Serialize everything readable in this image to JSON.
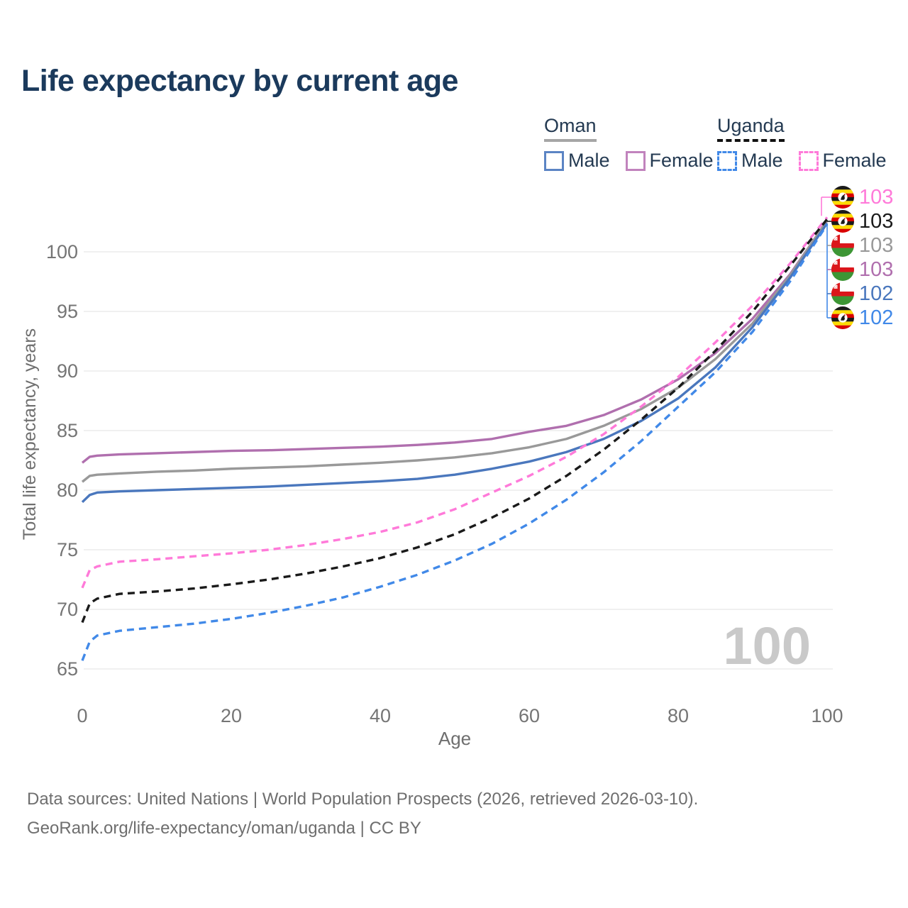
{
  "title": "Life expectancy by current age",
  "watermark": "100",
  "legend": {
    "groups": [
      {
        "country": "Oman",
        "items": [
          {
            "label": "Male"
          },
          {
            "label": "Female"
          }
        ]
      },
      {
        "country": "Uganda",
        "items": [
          {
            "label": "Male"
          },
          {
            "label": "Female"
          }
        ]
      }
    ]
  },
  "footer": {
    "line1": "Data sources: United Nations | World Population Prospects (2026, retrieved 2026-03-10).",
    "line2": "GeoRank.org/life-expectancy/oman/uganda | CC BY"
  },
  "chart_data": {
    "type": "line",
    "title": "Life expectancy by current age",
    "xlabel": "Age",
    "ylabel": "Total life expectancy, years",
    "xlim": [
      0,
      100
    ],
    "ylim": [
      65,
      104
    ],
    "x_ticks": [
      0,
      20,
      40,
      60,
      80,
      100
    ],
    "y_ticks": [
      65,
      70,
      75,
      80,
      85,
      90,
      95,
      100
    ],
    "grid": "horizontal",
    "legend_position": "top-right",
    "x": [
      0,
      1,
      2,
      5,
      10,
      15,
      20,
      25,
      30,
      35,
      40,
      45,
      50,
      55,
      60,
      65,
      70,
      75,
      80,
      85,
      90,
      95,
      100
    ],
    "series": [
      {
        "name": "Oman Female",
        "country": "Oman",
        "sex": "Female",
        "color": "#b06fae",
        "style": "solid",
        "values": [
          82.3,
          82.8,
          82.9,
          83.0,
          83.1,
          83.2,
          83.3,
          83.35,
          83.45,
          83.55,
          83.65,
          83.8,
          84.0,
          84.3,
          84.9,
          85.4,
          86.3,
          87.6,
          89.3,
          91.5,
          94.4,
          98.1,
          102.6
        ]
      },
      {
        "name": "Oman",
        "country": "Oman",
        "sex": "Overall",
        "color": "#999999",
        "style": "solid",
        "values": [
          80.7,
          81.2,
          81.3,
          81.4,
          81.55,
          81.65,
          81.8,
          81.9,
          82.0,
          82.15,
          82.3,
          82.5,
          82.75,
          83.1,
          83.6,
          84.3,
          85.4,
          86.8,
          88.6,
          91.0,
          94.0,
          98.0,
          102.65
        ]
      },
      {
        "name": "Oman Male",
        "country": "Oman",
        "sex": "Male",
        "color": "#4a77bd",
        "style": "solid",
        "values": [
          79.0,
          79.6,
          79.8,
          79.9,
          80.0,
          80.1,
          80.2,
          80.3,
          80.45,
          80.6,
          80.75,
          80.95,
          81.3,
          81.8,
          82.4,
          83.2,
          84.3,
          85.8,
          87.7,
          90.3,
          93.7,
          97.8,
          102.4
        ]
      },
      {
        "name": "Uganda Female",
        "country": "Uganda",
        "sex": "Female",
        "color": "#ff7ad9",
        "style": "dashed",
        "values": [
          71.8,
          73.3,
          73.6,
          74.0,
          74.2,
          74.45,
          74.7,
          75.0,
          75.4,
          75.9,
          76.5,
          77.3,
          78.4,
          79.8,
          81.2,
          82.8,
          84.7,
          87.0,
          89.5,
          92.4,
          95.5,
          99.0,
          102.9
        ]
      },
      {
        "name": "Uganda",
        "country": "Uganda",
        "sex": "Overall",
        "color": "#1a1a1a",
        "style": "dashed",
        "values": [
          68.9,
          70.5,
          70.9,
          71.3,
          71.5,
          71.75,
          72.1,
          72.5,
          73.0,
          73.6,
          74.3,
          75.2,
          76.3,
          77.7,
          79.3,
          81.2,
          83.4,
          85.9,
          88.6,
          91.7,
          95.0,
          98.8,
          102.75
        ]
      },
      {
        "name": "Uganda Male",
        "country": "Uganda",
        "sex": "Male",
        "color": "#4189e8",
        "style": "dashed",
        "values": [
          65.7,
          67.3,
          67.8,
          68.2,
          68.5,
          68.8,
          69.2,
          69.7,
          70.3,
          71.0,
          71.9,
          72.9,
          74.1,
          75.5,
          77.2,
          79.2,
          81.5,
          84.1,
          87.0,
          89.9,
          93.3,
          97.5,
          102.3
        ]
      }
    ],
    "end_labels": [
      {
        "text": "103",
        "series": "Uganda Female",
        "color": "#ff7ad9",
        "flag": "uganda"
      },
      {
        "text": "103",
        "series": "Uganda",
        "color": "#1a1a1a",
        "flag": "uganda"
      },
      {
        "text": "103",
        "series": "Oman",
        "color": "#999999",
        "flag": "oman"
      },
      {
        "text": "103",
        "series": "Oman Female",
        "color": "#b06fae",
        "flag": "oman"
      },
      {
        "text": "102",
        "series": "Oman Male",
        "color": "#4a77bd",
        "flag": "oman"
      },
      {
        "text": "102",
        "series": "Uganda Male",
        "color": "#4189e8",
        "flag": "uganda"
      }
    ]
  }
}
